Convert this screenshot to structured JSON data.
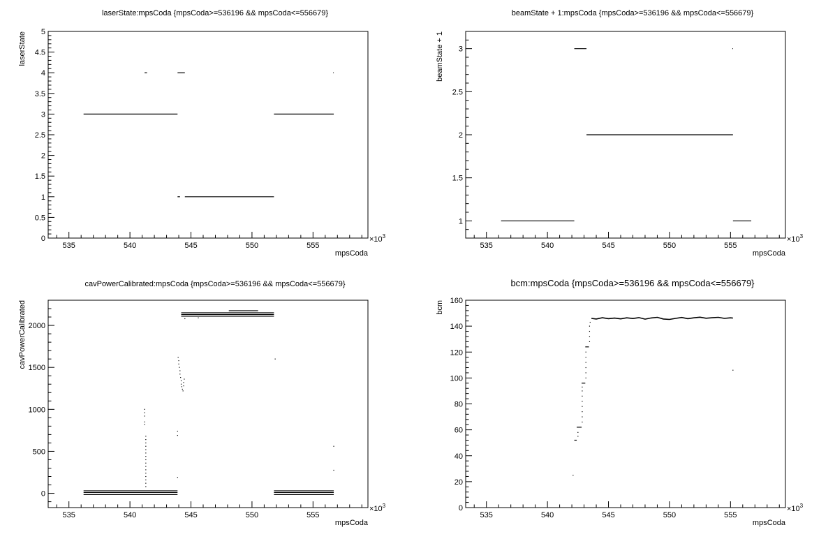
{
  "chart_data": [
    {
      "type": "scatter",
      "title": "laserState:mpsCoda {mpsCoda>=536196 && mpsCoda<=556679}",
      "xlabel": "mpsCoda",
      "ylabel": "laserState",
      "x_multiplier": "×10",
      "x_multiplier_exp": "3",
      "xlim": [
        533.3,
        559.5
      ],
      "ylim": [
        0,
        5
      ],
      "x_ticks": [
        535,
        540,
        545,
        550,
        555
      ],
      "y_ticks": [
        0,
        0.5,
        1,
        1.5,
        2,
        2.5,
        3,
        3.5,
        4,
        4.5,
        5
      ],
      "segments": [
        {
          "x0": 536.2,
          "x1": 543.9,
          "y": 3
        },
        {
          "x0": 541.2,
          "x1": 541.4,
          "y": 4
        },
        {
          "x0": 543.9,
          "x1": 544.5,
          "y": 4
        },
        {
          "x0": 543.9,
          "x1": 544.1,
          "y": 1
        },
        {
          "x0": 544.5,
          "x1": 551.8,
          "y": 1
        },
        {
          "x0": 551.8,
          "x1": 556.7,
          "y": 3
        },
        {
          "x0": 556.65,
          "x1": 556.7,
          "y": 4
        }
      ],
      "points": []
    },
    {
      "type": "scatter",
      "title": "beamState + 1:mpsCoda {mpsCoda>=536196 && mpsCoda<=556679}",
      "xlabel": "mpsCoda",
      "ylabel": "beamState + 1",
      "x_multiplier": "×10",
      "x_multiplier_exp": "3",
      "xlim": [
        533.3,
        559.5
      ],
      "ylim": [
        0.8,
        3.2
      ],
      "x_ticks": [
        535,
        540,
        545,
        550,
        555
      ],
      "y_ticks": [
        1,
        1.5,
        2,
        2.5,
        3
      ],
      "segments": [
        {
          "x0": 536.2,
          "x1": 542.2,
          "y": 1
        },
        {
          "x0": 542.2,
          "x1": 543.2,
          "y": 3
        },
        {
          "x0": 543.2,
          "x1": 555.2,
          "y": 2
        },
        {
          "x0": 555.15,
          "x1": 555.2,
          "y": 3
        },
        {
          "x0": 555.2,
          "x1": 556.7,
          "y": 1
        }
      ],
      "points": []
    },
    {
      "type": "scatter",
      "title": "cavPowerCalibrated:mpsCoda {mpsCoda>=536196 && mpsCoda<=556679}",
      "xlabel": "mpsCoda",
      "ylabel": "cavPowerCalibrated",
      "x_multiplier": "×10",
      "x_multiplier_exp": "3",
      "xlim": [
        533.3,
        559.5
      ],
      "ylim": [
        -170,
        2300
      ],
      "x_ticks": [
        535,
        540,
        545,
        550,
        555
      ],
      "y_ticks": [
        0,
        500,
        1000,
        1500,
        2000
      ],
      "segments": [
        {
          "x0": 536.2,
          "x1": 543.9,
          "y": 30
        },
        {
          "x0": 536.2,
          "x1": 543.9,
          "y": 10
        },
        {
          "x0": 536.2,
          "x1": 543.9,
          "y": -15
        },
        {
          "x0": 544.2,
          "x1": 551.8,
          "y": 2150
        },
        {
          "x0": 544.2,
          "x1": 551.8,
          "y": 2130
        },
        {
          "x0": 544.2,
          "x1": 551.8,
          "y": 2110
        },
        {
          "x0": 548.1,
          "x1": 550.5,
          "y": 2175
        },
        {
          "x0": 551.8,
          "x1": 556.7,
          "y": 30
        },
        {
          "x0": 551.8,
          "x1": 556.7,
          "y": 10
        },
        {
          "x0": 551.8,
          "x1": 556.7,
          "y": -15
        }
      ],
      "points": [
        {
          "x": 541.2,
          "y": 1000
        },
        {
          "x": 541.2,
          "y": 960
        },
        {
          "x": 541.2,
          "y": 920
        },
        {
          "x": 541.2,
          "y": 850
        },
        {
          "x": 541.2,
          "y": 820
        },
        {
          "x": 541.3,
          "y": 680
        },
        {
          "x": 541.3,
          "y": 640
        },
        {
          "x": 541.3,
          "y": 600
        },
        {
          "x": 541.3,
          "y": 560
        },
        {
          "x": 541.3,
          "y": 520
        },
        {
          "x": 541.3,
          "y": 480
        },
        {
          "x": 541.3,
          "y": 440
        },
        {
          "x": 541.3,
          "y": 400
        },
        {
          "x": 541.3,
          "y": 360
        },
        {
          "x": 541.3,
          "y": 320
        },
        {
          "x": 541.3,
          "y": 280
        },
        {
          "x": 541.3,
          "y": 240
        },
        {
          "x": 541.3,
          "y": 200
        },
        {
          "x": 541.3,
          "y": 160
        },
        {
          "x": 541.3,
          "y": 120
        },
        {
          "x": 541.3,
          "y": 80
        },
        {
          "x": 543.9,
          "y": 740
        },
        {
          "x": 543.9,
          "y": 690
        },
        {
          "x": 543.9,
          "y": 190
        },
        {
          "x": 543.95,
          "y": 1620
        },
        {
          "x": 544.0,
          "y": 1580
        },
        {
          "x": 544.0,
          "y": 1540
        },
        {
          "x": 544.05,
          "y": 1500
        },
        {
          "x": 544.1,
          "y": 1460
        },
        {
          "x": 544.1,
          "y": 1420
        },
        {
          "x": 544.15,
          "y": 1380
        },
        {
          "x": 544.2,
          "y": 1340
        },
        {
          "x": 544.2,
          "y": 1300
        },
        {
          "x": 544.25,
          "y": 1270
        },
        {
          "x": 544.3,
          "y": 1240
        },
        {
          "x": 544.35,
          "y": 1220
        },
        {
          "x": 544.4,
          "y": 1280
        },
        {
          "x": 544.4,
          "y": 1320
        },
        {
          "x": 544.45,
          "y": 1360
        },
        {
          "x": 544.5,
          "y": 2080
        },
        {
          "x": 545.6,
          "y": 2090
        },
        {
          "x": 551.9,
          "y": 1600
        },
        {
          "x": 556.7,
          "y": 560
        },
        {
          "x": 556.7,
          "y": 275
        }
      ]
    },
    {
      "type": "scatter",
      "title": "bcm:mpsCoda {mpsCoda>=536196 && mpsCoda<=556679}",
      "xlabel": "mpsCoda",
      "ylabel": "bcm",
      "x_multiplier": "×10",
      "x_multiplier_exp": "3",
      "xlim": [
        533.3,
        559.5
      ],
      "ylim": [
        0,
        160
      ],
      "x_ticks": [
        535,
        540,
        545,
        550,
        555
      ],
      "y_ticks": [
        0,
        20,
        40,
        60,
        80,
        100,
        120,
        140,
        160
      ],
      "segments": [
        {
          "x0": 542.2,
          "x1": 542.4,
          "y": 52
        },
        {
          "x0": 542.4,
          "x1": 542.8,
          "y": 62
        },
        {
          "x0": 542.8,
          "x1": 543.1,
          "y": 96
        },
        {
          "x0": 543.1,
          "x1": 543.4,
          "y": 124
        }
      ],
      "trace": [
        [
          543.6,
          146
        ],
        [
          544.0,
          145.5
        ],
        [
          544.5,
          146.5
        ],
        [
          545.0,
          145.8
        ],
        [
          545.5,
          146.2
        ],
        [
          546.0,
          145.6
        ],
        [
          546.5,
          146.4
        ],
        [
          547.0,
          145.9
        ],
        [
          547.5,
          146.6
        ],
        [
          548.0,
          145.4
        ],
        [
          548.5,
          146.3
        ],
        [
          549.0,
          146.8
        ],
        [
          549.5,
          145.5
        ],
        [
          550.0,
          145.2
        ],
        [
          550.5,
          146.0
        ],
        [
          551.0,
          146.7
        ],
        [
          551.5,
          145.8
        ],
        [
          552.0,
          146.4
        ],
        [
          552.5,
          146.9
        ],
        [
          553.0,
          146.1
        ],
        [
          553.5,
          146.5
        ],
        [
          554.0,
          146.8
        ],
        [
          554.5,
          146.0
        ],
        [
          555.0,
          146.4
        ],
        [
          555.2,
          146.2
        ]
      ],
      "points": [
        {
          "x": 542.1,
          "y": 25
        },
        {
          "x": 542.5,
          "y": 55
        },
        {
          "x": 542.5,
          "y": 58
        },
        {
          "x": 542.85,
          "y": 66
        },
        {
          "x": 542.85,
          "y": 70
        },
        {
          "x": 542.85,
          "y": 74
        },
        {
          "x": 542.85,
          "y": 78
        },
        {
          "x": 542.85,
          "y": 82
        },
        {
          "x": 542.85,
          "y": 86
        },
        {
          "x": 542.85,
          "y": 90
        },
        {
          "x": 542.85,
          "y": 93
        },
        {
          "x": 543.15,
          "y": 100
        },
        {
          "x": 543.15,
          "y": 104
        },
        {
          "x": 543.15,
          "y": 108
        },
        {
          "x": 543.15,
          "y": 112
        },
        {
          "x": 543.15,
          "y": 116
        },
        {
          "x": 543.15,
          "y": 120
        },
        {
          "x": 543.45,
          "y": 128
        },
        {
          "x": 543.45,
          "y": 132
        },
        {
          "x": 543.45,
          "y": 136
        },
        {
          "x": 543.45,
          "y": 140
        },
        {
          "x": 543.5,
          "y": 143
        },
        {
          "x": 555.2,
          "y": 106
        }
      ]
    }
  ]
}
